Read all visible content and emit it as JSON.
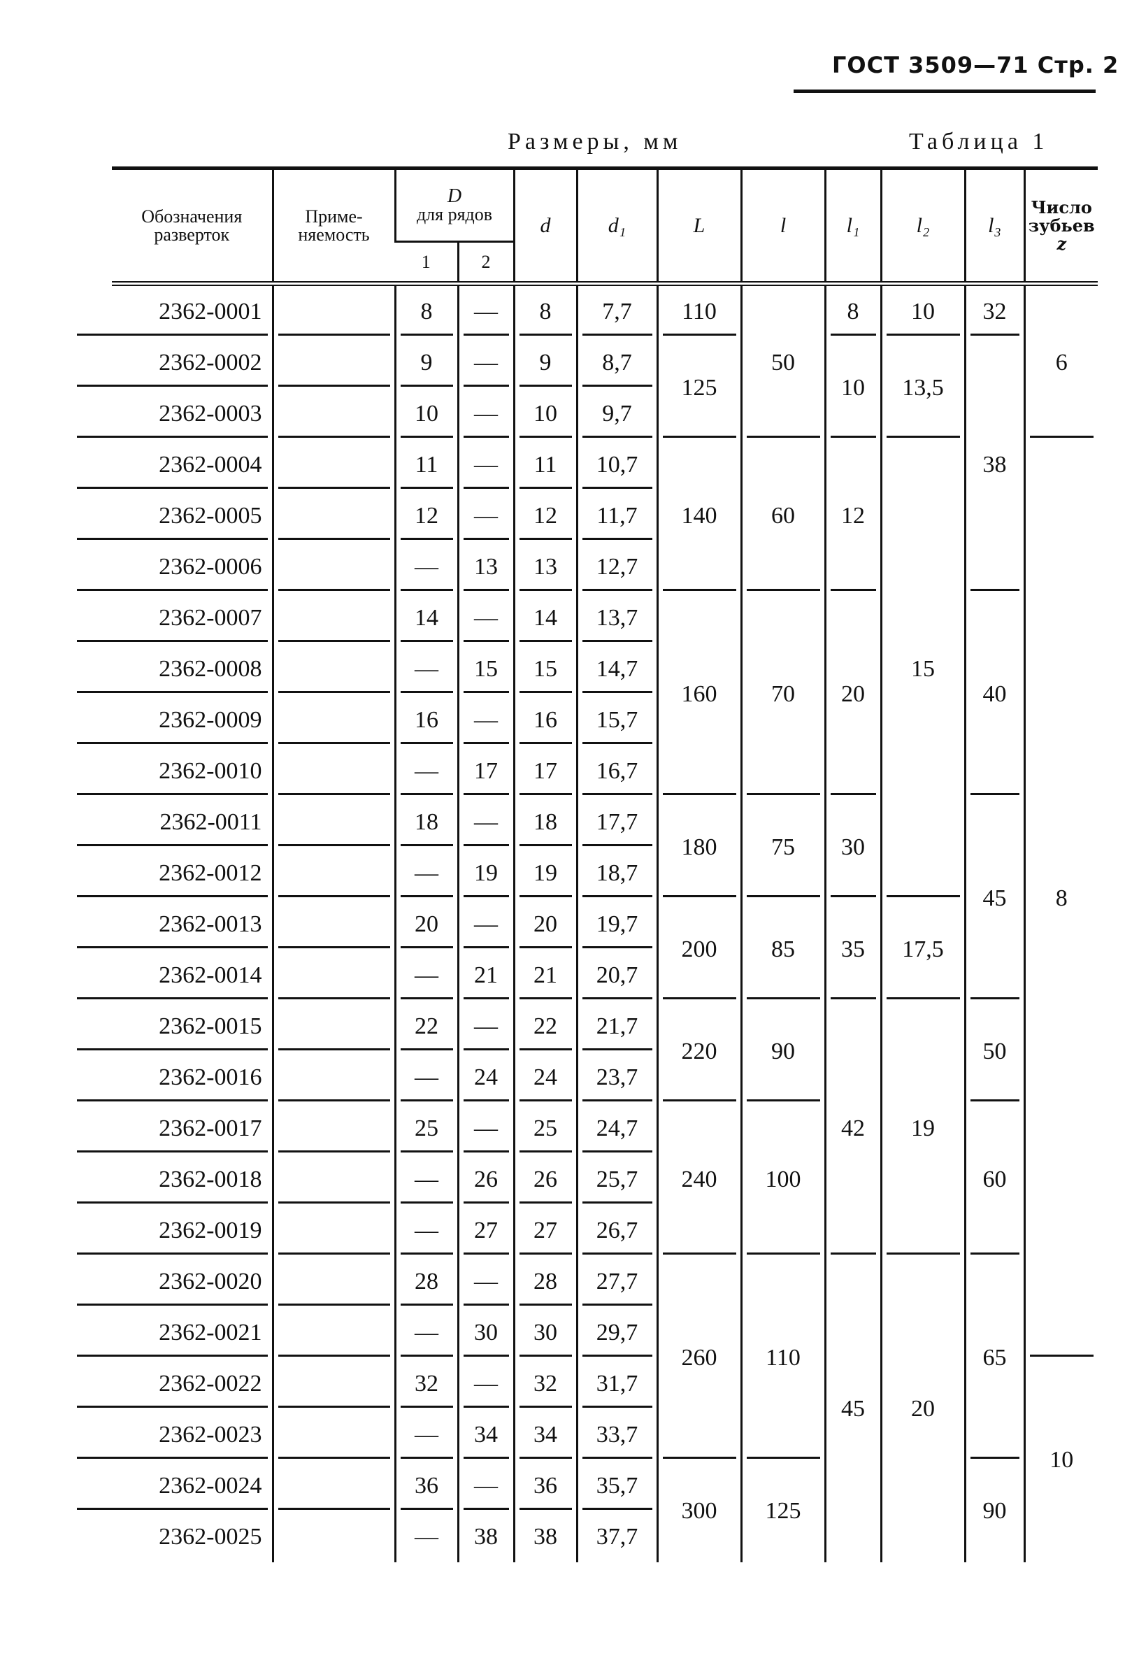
{
  "header": {
    "gost": "ГОСТ 3509—71 Стр. 2",
    "sizes_label": "Размеры, мм",
    "table_label": "Таблица 1"
  },
  "columns": {
    "designation": "Обозначения разверток",
    "applicability": "Приме-няемость",
    "D": "D",
    "D_sub": "для рядов",
    "D_row1": "1",
    "D_row2": "2",
    "d": "d",
    "d1": "d₁",
    "L": "L",
    "l": "l",
    "l1": "l₁",
    "l2": "l₂",
    "l3": "l₃",
    "z_title": "Число зубьев",
    "z": "z"
  },
  "rows": [
    {
      "code": "2362-0001",
      "D1": "8",
      "D2": "—",
      "d": "8",
      "d1": "7,7"
    },
    {
      "code": "2362-0002",
      "D1": "9",
      "D2": "—",
      "d": "9",
      "d1": "8,7"
    },
    {
      "code": "2362-0003",
      "D1": "10",
      "D2": "—",
      "d": "10",
      "d1": "9,7"
    },
    {
      "code": "2362-0004",
      "D1": "11",
      "D2": "—",
      "d": "11",
      "d1": "10,7"
    },
    {
      "code": "2362-0005",
      "D1": "12",
      "D2": "—",
      "d": "12",
      "d1": "11,7"
    },
    {
      "code": "2362-0006",
      "D1": "—",
      "D2": "13",
      "d": "13",
      "d1": "12,7"
    },
    {
      "code": "2362-0007",
      "D1": "14",
      "D2": "—",
      "d": "14",
      "d1": "13,7"
    },
    {
      "code": "2362-0008",
      "D1": "—",
      "D2": "15",
      "d": "15",
      "d1": "14,7"
    },
    {
      "code": "2362-0009",
      "D1": "16",
      "D2": "—",
      "d": "16",
      "d1": "15,7"
    },
    {
      "code": "2362-0010",
      "D1": "—",
      "D2": "17",
      "d": "17",
      "d1": "16,7"
    },
    {
      "code": "2362-0011",
      "D1": "18",
      "D2": "—",
      "d": "18",
      "d1": "17,7"
    },
    {
      "code": "2362-0012",
      "D1": "—",
      "D2": "19",
      "d": "19",
      "d1": "18,7"
    },
    {
      "code": "2362-0013",
      "D1": "20",
      "D2": "—",
      "d": "20",
      "d1": "19,7"
    },
    {
      "code": "2362-0014",
      "D1": "—",
      "D2": "21",
      "d": "21",
      "d1": "20,7"
    },
    {
      "code": "2362-0015",
      "D1": "22",
      "D2": "—",
      "d": "22",
      "d1": "21,7"
    },
    {
      "code": "2362-0016",
      "D1": "—",
      "D2": "24",
      "d": "24",
      "d1": "23,7"
    },
    {
      "code": "2362-0017",
      "D1": "25",
      "D2": "—",
      "d": "25",
      "d1": "24,7"
    },
    {
      "code": "2362-0018",
      "D1": "—",
      "D2": "26",
      "d": "26",
      "d1": "25,7"
    },
    {
      "code": "2362-0019",
      "D1": "—",
      "D2": "27",
      "d": "27",
      "d1": "26,7"
    },
    {
      "code": "2362-0020",
      "D1": "28",
      "D2": "—",
      "d": "28",
      "d1": "27,7"
    },
    {
      "code": "2362-0021",
      "D1": "—",
      "D2": "30",
      "d": "30",
      "d1": "29,7"
    },
    {
      "code": "2362-0022",
      "D1": "32",
      "D2": "—",
      "d": "32",
      "d1": "31,7"
    },
    {
      "code": "2362-0023",
      "D1": "—",
      "D2": "34",
      "d": "34",
      "d1": "33,7"
    },
    {
      "code": "2362-0024",
      "D1": "36",
      "D2": "—",
      "d": "36",
      "d1": "35,7"
    },
    {
      "code": "2362-0025",
      "D1": "—",
      "D2": "38",
      "d": "38",
      "d1": "37,7"
    }
  ],
  "groups": {
    "L": [
      {
        "value": "110",
        "span": 1
      },
      {
        "value": "125",
        "span": 2
      },
      {
        "value": "140",
        "span": 3
      },
      {
        "value": "160",
        "span": 4
      },
      {
        "value": "180",
        "span": 2
      },
      {
        "value": "200",
        "span": 2
      },
      {
        "value": "220",
        "span": 2
      },
      {
        "value": "240",
        "span": 3
      },
      {
        "value": "260",
        "span": 4
      },
      {
        "value": "300",
        "span": 2
      }
    ],
    "l": [
      {
        "value": "50",
        "span": 3
      },
      {
        "value": "60",
        "span": 3
      },
      {
        "value": "70",
        "span": 4
      },
      {
        "value": "75",
        "span": 2
      },
      {
        "value": "85",
        "span": 2
      },
      {
        "value": "90",
        "span": 2
      },
      {
        "value": "100",
        "span": 3
      },
      {
        "value": "110",
        "span": 4
      },
      {
        "value": "125",
        "span": 2
      }
    ],
    "l1": [
      {
        "value": "8",
        "span": 1
      },
      {
        "value": "10",
        "span": 2
      },
      {
        "value": "12",
        "span": 3
      },
      {
        "value": "20",
        "span": 4
      },
      {
        "value": "30",
        "span": 2
      },
      {
        "value": "35",
        "span": 2
      },
      {
        "value": "42",
        "span": 5
      },
      {
        "value": "45",
        "span": 6
      }
    ],
    "l2": [
      {
        "value": "10",
        "span": 1
      },
      {
        "value": "13,5",
        "span": 2
      },
      {
        "value": "15",
        "span": 9
      },
      {
        "value": "17,5",
        "span": 2
      },
      {
        "value": "19",
        "span": 5
      },
      {
        "value": "20",
        "span": 6
      }
    ],
    "l3": [
      {
        "value": "32",
        "span": 1
      },
      {
        "value": "38",
        "span": 5
      },
      {
        "value": "40",
        "span": 4
      },
      {
        "value": "45",
        "span": 4
      },
      {
        "value": "50",
        "span": 2
      },
      {
        "value": "60",
        "span": 3
      },
      {
        "value": "65",
        "span": 4
      },
      {
        "value": "90",
        "span": 2
      }
    ],
    "z": [
      {
        "value": "6",
        "span": 3
      },
      {
        "value": "8",
        "span": 18
      },
      {
        "value": "10",
        "span": 4
      }
    ]
  }
}
